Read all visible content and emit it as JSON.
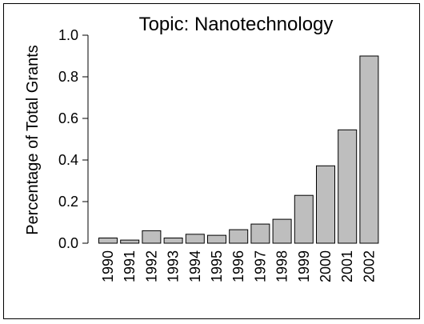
{
  "chart_data": {
    "type": "bar",
    "title": "Topic: Nanotechnology",
    "xlabel": "",
    "ylabel": "Percentage of Total Grants",
    "categories": [
      "1990",
      "1991",
      "1992",
      "1993",
      "1994",
      "1995",
      "1996",
      "1997",
      "1998",
      "1999",
      "2000",
      "2001",
      "2002"
    ],
    "values": [
      0.025,
      0.015,
      0.06,
      0.025,
      0.043,
      0.038,
      0.065,
      0.092,
      0.115,
      0.23,
      0.372,
      0.545,
      0.9
    ],
    "ylim": [
      0,
      1.0
    ],
    "yticks": [
      "0.0",
      "0.2",
      "0.4",
      "0.6",
      "0.8",
      "1.0"
    ],
    "grid": false,
    "colors": {
      "bar_fill": "#bebebe",
      "bar_stroke": "#000000"
    }
  }
}
